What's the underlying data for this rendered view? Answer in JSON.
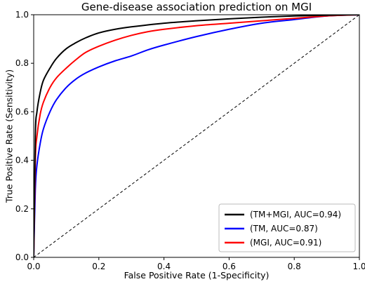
{
  "chart_data": {
    "type": "line",
    "title": "Gene-disease association prediction on MGI",
    "xlabel": "False Positive Rate (1-Specificity)",
    "ylabel": "True Positive Rate (Sensitivity)",
    "xlim": [
      0.0,
      1.0
    ],
    "ylim": [
      0.0,
      1.0
    ],
    "xticks": [
      "0.0",
      "0.2",
      "0.4",
      "0.6",
      "0.8",
      "1.0"
    ],
    "yticks": [
      "0.0",
      "0.2",
      "0.4",
      "0.6",
      "0.8",
      "1.0"
    ],
    "grid": false,
    "legend_position": "lower-right",
    "series": [
      {
        "name": "(TM+MGI, AUC=0.94)",
        "color": "#000000",
        "x": [
          0,
          0.005,
          0.01,
          0.02,
          0.03,
          0.05,
          0.07,
          0.1,
          0.13,
          0.16,
          0.2,
          0.25,
          0.3,
          0.4,
          0.5,
          0.6,
          0.7,
          0.8,
          0.9,
          1.0
        ],
        "y": [
          0,
          0.5,
          0.6,
          0.68,
          0.73,
          0.78,
          0.82,
          0.86,
          0.885,
          0.905,
          0.925,
          0.94,
          0.95,
          0.965,
          0.975,
          0.983,
          0.99,
          0.995,
          0.998,
          1.0
        ]
      },
      {
        "name": "(TM, AUC=0.87)",
        "color": "#0000ff",
        "x": [
          0,
          0.005,
          0.01,
          0.02,
          0.03,
          0.05,
          0.07,
          0.1,
          0.13,
          0.16,
          0.2,
          0.25,
          0.3,
          0.35,
          0.4,
          0.5,
          0.6,
          0.7,
          0.8,
          0.9,
          1.0
        ],
        "y": [
          0,
          0.28,
          0.38,
          0.47,
          0.53,
          0.6,
          0.65,
          0.7,
          0.735,
          0.76,
          0.785,
          0.81,
          0.83,
          0.855,
          0.875,
          0.91,
          0.94,
          0.965,
          0.98,
          0.995,
          1.0
        ]
      },
      {
        "name": "(MGI, AUC=0.91)",
        "color": "#ff0000",
        "x": [
          0,
          0.005,
          0.01,
          0.02,
          0.03,
          0.05,
          0.07,
          0.1,
          0.13,
          0.16,
          0.2,
          0.25,
          0.3,
          0.35,
          0.4,
          0.5,
          0.6,
          0.7,
          0.8,
          0.9,
          1.0
        ],
        "y": [
          0,
          0.4,
          0.5,
          0.59,
          0.64,
          0.7,
          0.74,
          0.78,
          0.815,
          0.845,
          0.87,
          0.895,
          0.915,
          0.93,
          0.94,
          0.955,
          0.965,
          0.975,
          0.985,
          0.995,
          1.0
        ]
      }
    ],
    "reference_line": {
      "style": "dashed",
      "color": "#000000",
      "x": [
        0,
        1
      ],
      "y": [
        0,
        1
      ]
    }
  }
}
